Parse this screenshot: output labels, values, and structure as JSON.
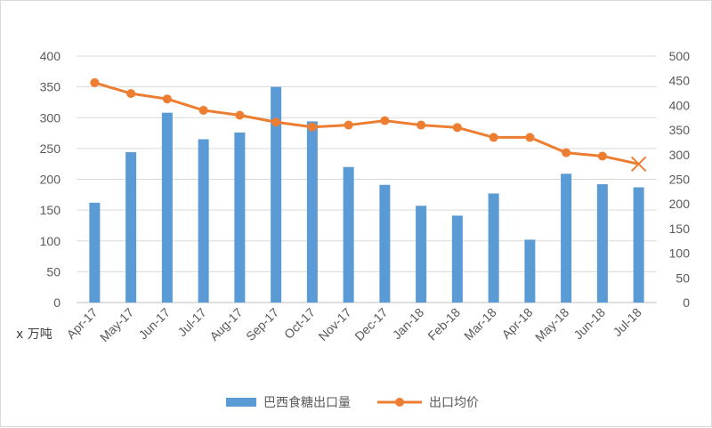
{
  "chart_data": {
    "type": "bar",
    "categories": [
      "Apr-17",
      "May-17",
      "Jun-17",
      "Jul-17",
      "Aug-17",
      "Sep-17",
      "Oct-17",
      "Nov-17",
      "Dec-17",
      "Jan-18",
      "Feb-18",
      "Mar-18",
      "Apr-18",
      "May-18",
      "Jun-18",
      "Jul-18"
    ],
    "series": [
      {
        "name": "巴西食糖出口量",
        "type": "bar",
        "axis": "left",
        "color": "#5b9bd5",
        "values": [
          162,
          244,
          308,
          265,
          276,
          350,
          294,
          220,
          191,
          157,
          141,
          177,
          102,
          209,
          192,
          187
        ]
      },
      {
        "name": "出口均价",
        "type": "line",
        "axis": "right",
        "color": "#ed7d31",
        "values": [
          446,
          424,
          413,
          390,
          380,
          366,
          356,
          360,
          369,
          360,
          355,
          335,
          335,
          304,
          297,
          281
        ],
        "last_marker": "x"
      }
    ],
    "y_left": {
      "min": 0,
      "max": 400,
      "ticks": [
        0,
        50,
        100,
        150,
        200,
        250,
        300,
        350,
        400
      ],
      "unit_label": "x 万吨"
    },
    "y_right": {
      "min": 0,
      "max": 500,
      "ticks": [
        0,
        50,
        100,
        150,
        200,
        250,
        300,
        350,
        400,
        450,
        500
      ]
    },
    "grid": true,
    "legend_position": "bottom"
  }
}
